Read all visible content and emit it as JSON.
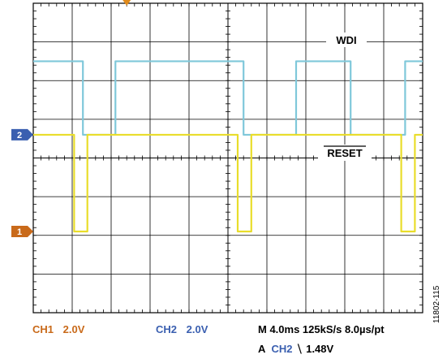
{
  "scope": {
    "traces": [
      {
        "channel": "CH2",
        "label": "WDI",
        "overline": false,
        "color": "#7fc8da",
        "marker_text": "2",
        "marker_color": "#3a5fb0",
        "high_level_div": 2.5,
        "low_level_div": 0.6,
        "edges_time_div": [
          0.0,
          2.55,
          4.22,
          10.8,
          13.5,
          16.3,
          19.1,
          20.0
        ]
      },
      {
        "channel": "CH1",
        "label": "RESET",
        "overline": true,
        "color": "#e9dd2b",
        "marker_text": "1",
        "marker_color": "#c96a1a",
        "high_level_div": 0.6,
        "low_level_div": -1.9,
        "edges_time_div": [
          0.0,
          2.1,
          2.78,
          10.5,
          11.2,
          18.9,
          19.6,
          20.0
        ]
      }
    ],
    "trigger_marker_color": "#e08a1a",
    "time_divisions": 10,
    "volt_divisions": 8
  },
  "readout": {
    "ch1": {
      "name": "CH1",
      "scale": "2.0V",
      "color": "#c96a1a"
    },
    "ch2": {
      "name": "CH2",
      "scale": "2.0V",
      "color": "#3a5fb0"
    },
    "timebase": "M 4.0ms 125kS/s  8.0µs/pt",
    "trigger_prefix": "A",
    "trigger_channel": "CH2",
    "trigger_slope": "⧹",
    "trigger_level": "1.48V"
  },
  "figure_id": "11802-115"
}
